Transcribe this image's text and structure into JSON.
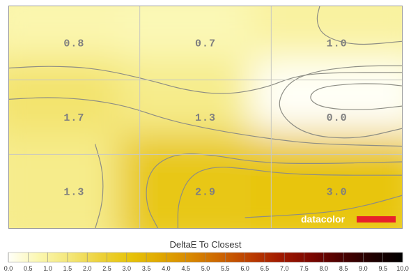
{
  "chart_data": {
    "type": "heatmap",
    "title": "DeltaE To Closest",
    "rows": 3,
    "cols": 3,
    "values": [
      [
        0.8,
        0.7,
        1.0
      ],
      [
        1.7,
        1.3,
        0.0
      ],
      [
        1.3,
        2.9,
        3.0
      ]
    ],
    "labels": [
      [
        "0.8",
        "0.7",
        "1.0"
      ],
      [
        "1.7",
        "1.3",
        "0.0"
      ],
      [
        "1.3",
        "2.9",
        "3.0"
      ]
    ],
    "scale_ticks": [
      "0.0",
      "0.5",
      "1.0",
      "1.5",
      "2.0",
      "2.5",
      "3.0",
      "3.5",
      "4.0",
      "4.5",
      "5.0",
      "5.5",
      "6.0",
      "6.5",
      "7.0",
      "7.5",
      "8.0",
      "8.5",
      "9.0",
      "9.5",
      "10.0"
    ],
    "scale_range": [
      0,
      10
    ],
    "color_stops": [
      "#fffff8",
      "#fbf7b0",
      "#f4e77a",
      "#edd23c",
      "#e7c40a",
      "#e0a800",
      "#d88800",
      "#cc6400",
      "#bb3c00",
      "#a01800",
      "#7a0600",
      "#4a0000",
      "#200000",
      "#000000"
    ],
    "contours": true,
    "grid": true
  },
  "brand": {
    "name": "datacolor",
    "bar_color": "#e8202a"
  }
}
